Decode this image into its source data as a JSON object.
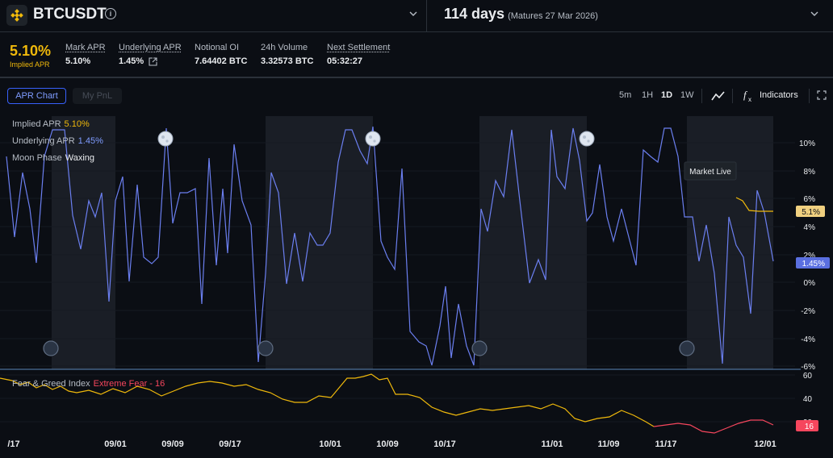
{
  "header": {
    "symbol": "BTCUSDT",
    "days": "114 days",
    "matures": "(Matures 27 Mar 2026)"
  },
  "stats": {
    "implied_apr_value": "5.10%",
    "implied_apr_label": "Implied APR",
    "mark_apr_label": "Mark APR",
    "mark_apr_value": "5.10%",
    "underlying_apr_label": "Underlying APR",
    "underlying_apr_value": "1.45%",
    "notional_oi_label": "Notional OI",
    "notional_oi_value": "7.64402 BTC",
    "volume_label": "24h Volume",
    "volume_value": "3.32573 BTC",
    "settlement_label": "Next Settlement",
    "settlement_value": "05:32:27"
  },
  "toolbar": {
    "tab_apr": "APR Chart",
    "tab_pnl": "My PnL",
    "timeframes": [
      "5m",
      "1H",
      "1D",
      "1W"
    ],
    "active_timeframe": "1D",
    "indicators_label": "Indicators"
  },
  "legend": {
    "implied_label": "Implied APR",
    "implied_value": "5.10%",
    "underlying_label": "Underlying APR",
    "underlying_value": "1.45%",
    "moon_label": "Moon Phase",
    "moon_value": "Waxing",
    "fg_label": "Fear & Greed Index",
    "fg_value": "Extreme Fear - 16"
  },
  "chart": {
    "market_live_label": "Market Live",
    "implied_tag": "5.1%",
    "underlying_tag": "1.45%",
    "fg_tag": "16",
    "y_ticks": [
      "10%",
      "8%",
      "6%",
      "4%",
      "2%",
      "0%",
      "-2%",
      "-4%",
      "-6%"
    ],
    "fg_ticks": [
      "60",
      "40",
      "20"
    ],
    "x_ticks": [
      "/17",
      "09/01",
      "09/09",
      "09/17",
      "10/01",
      "10/09",
      "10/17",
      "11/01",
      "11/09",
      "11/17",
      "12/01"
    ]
  },
  "colors": {
    "accent": "#f0b90b",
    "underlying_line": "#6b7ff0",
    "fear_red": "#f6465d",
    "active_tab": "#3861fb"
  }
}
